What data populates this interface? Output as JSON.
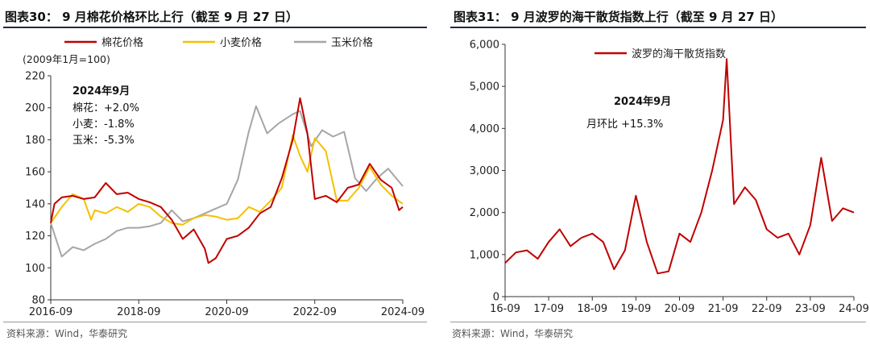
{
  "charts": {
    "left": {
      "title": "图表30： 9 月棉花价格环比上行（截至 9 月 27 日）",
      "source": "资料来源：Wind，华泰研究",
      "unit_note": "(2009年1月=100)",
      "annotation": {
        "heading": "2024年9月",
        "lines": [
          "棉花：+2.0%",
          "小麦：-1.8%",
          "玉米：-5.3%"
        ]
      }
    },
    "right": {
      "title": "图表31： 9 月波罗的海干散货指数上行（截至 9 月 27 日）",
      "source": "资料来源：Wind，华泰研究",
      "annotation": {
        "heading": "2024年9月",
        "lines": [
          "月环比      +15.3%"
        ]
      }
    }
  },
  "colors": {
    "cotton": "#c00000",
    "wheat": "#f5c000",
    "corn": "#a6a6a6",
    "bdi": "#c00000",
    "axis": "#333333",
    "title_rule": "#1f2a44"
  },
  "chart_data": [
    {
      "type": "line",
      "title": "图表30： 9 月棉花价格环比上行（截至 9 月 27 日）",
      "ylabel": "(2009年1月=100)",
      "ylim": [
        80,
        220
      ],
      "yticks": [
        80,
        100,
        120,
        140,
        160,
        180,
        200,
        220
      ],
      "xlim": [
        "2016-09",
        "2024-09"
      ],
      "xticks": [
        "2016-09",
        "2018-09",
        "2020-09",
        "2022-09",
        "2024-09"
      ],
      "legend_position": "top",
      "series": [
        {
          "name": "棉花价格",
          "color": "#c00000",
          "x": [
            "2016-09",
            "2016-10",
            "2016-12",
            "2017-03",
            "2017-06",
            "2017-09",
            "2017-12",
            "2018-03",
            "2018-06",
            "2018-09",
            "2018-12",
            "2019-03",
            "2019-06",
            "2019-09",
            "2019-12",
            "2020-03",
            "2020-04",
            "2020-06",
            "2020-09",
            "2020-12",
            "2021-03",
            "2021-06",
            "2021-09",
            "2021-10",
            "2021-12",
            "2022-03",
            "2022-05",
            "2022-07",
            "2022-09",
            "2022-12",
            "2023-03",
            "2023-06",
            "2023-09",
            "2023-12",
            "2024-03",
            "2024-06",
            "2024-08",
            "2024-09"
          ],
          "values": [
            128,
            140,
            144,
            145,
            143,
            144,
            153,
            146,
            147,
            143,
            141,
            138,
            130,
            118,
            124,
            112,
            103,
            106,
            118,
            120,
            125,
            134,
            138,
            144,
            156,
            180,
            206,
            184,
            143,
            145,
            141,
            150,
            152,
            165,
            155,
            150,
            136,
            138
          ]
        },
        {
          "name": "小麦价格",
          "color": "#f5c000",
          "x": [
            "2016-09",
            "2016-12",
            "2017-03",
            "2017-06",
            "2017-08",
            "2017-09",
            "2017-12",
            "2018-03",
            "2018-06",
            "2018-09",
            "2018-12",
            "2019-03",
            "2019-06",
            "2019-09",
            "2019-12",
            "2020-03",
            "2020-06",
            "2020-09",
            "2020-12",
            "2021-03",
            "2021-06",
            "2021-09",
            "2021-12",
            "2022-03",
            "2022-05",
            "2022-07",
            "2022-09",
            "2022-12",
            "2023-03",
            "2023-06",
            "2023-09",
            "2023-12",
            "2024-03",
            "2024-06",
            "2024-09"
          ],
          "values": [
            128,
            138,
            146,
            143,
            130,
            136,
            134,
            138,
            135,
            140,
            138,
            132,
            128,
            127,
            131,
            133,
            132,
            130,
            131,
            138,
            135,
            142,
            150,
            183,
            170,
            160,
            181,
            173,
            142,
            142,
            150,
            163,
            152,
            145,
            140
          ]
        },
        {
          "name": "玉米价格",
          "color": "#a6a6a6",
          "x": [
            "2016-09",
            "2016-12",
            "2017-03",
            "2017-06",
            "2017-09",
            "2017-12",
            "2018-03",
            "2018-06",
            "2018-09",
            "2018-12",
            "2019-03",
            "2019-06",
            "2019-09",
            "2019-12",
            "2020-03",
            "2020-06",
            "2020-09",
            "2020-12",
            "2021-03",
            "2021-05",
            "2021-08",
            "2021-11",
            "2022-03",
            "2022-05",
            "2022-08",
            "2022-11",
            "2023-02",
            "2023-05",
            "2023-08",
            "2023-11",
            "2024-02",
            "2024-05",
            "2024-09"
          ],
          "values": [
            128,
            107,
            113,
            111,
            115,
            118,
            123,
            125,
            125,
            126,
            128,
            136,
            129,
            131,
            134,
            137,
            140,
            155,
            185,
            201,
            184,
            190,
            196,
            198,
            176,
            186,
            182,
            185,
            156,
            148,
            156,
            162,
            151
          ]
        }
      ]
    },
    {
      "type": "line",
      "title": "图表31： 9 月波罗的海干散货指数上行（截至 9 月 27 日）",
      "ylim": [
        0,
        6000
      ],
      "yticks": [
        0,
        1000,
        2000,
        3000,
        4000,
        5000,
        6000
      ],
      "xlim": [
        "16-09",
        "24-09"
      ],
      "xticks": [
        "16-09",
        "17-09",
        "18-09",
        "19-09",
        "20-09",
        "21-09",
        "22-09",
        "23-09",
        "24-09"
      ],
      "legend_position": "top-left",
      "series": [
        {
          "name": "波罗的海干散货指数",
          "color": "#c00000",
          "x": [
            "16-09",
            "16-12",
            "17-03",
            "17-06",
            "17-09",
            "17-12",
            "18-03",
            "18-06",
            "18-09",
            "18-12",
            "19-03",
            "19-06",
            "19-09",
            "19-12",
            "20-03",
            "20-06",
            "20-09",
            "20-12",
            "21-03",
            "21-06",
            "21-09",
            "21-10",
            "21-12",
            "22-03",
            "22-06",
            "22-09",
            "22-12",
            "23-03",
            "23-06",
            "23-09",
            "23-12",
            "24-03",
            "24-06",
            "24-09"
          ],
          "values": [
            800,
            1050,
            1100,
            900,
            1300,
            1600,
            1200,
            1400,
            1500,
            1300,
            650,
            1100,
            2400,
            1300,
            550,
            600,
            1500,
            1300,
            2000,
            3000,
            4200,
            5650,
            2200,
            2600,
            2300,
            1600,
            1400,
            1500,
            1000,
            1700,
            3300,
            1800,
            2100,
            2000
          ]
        }
      ]
    }
  ]
}
